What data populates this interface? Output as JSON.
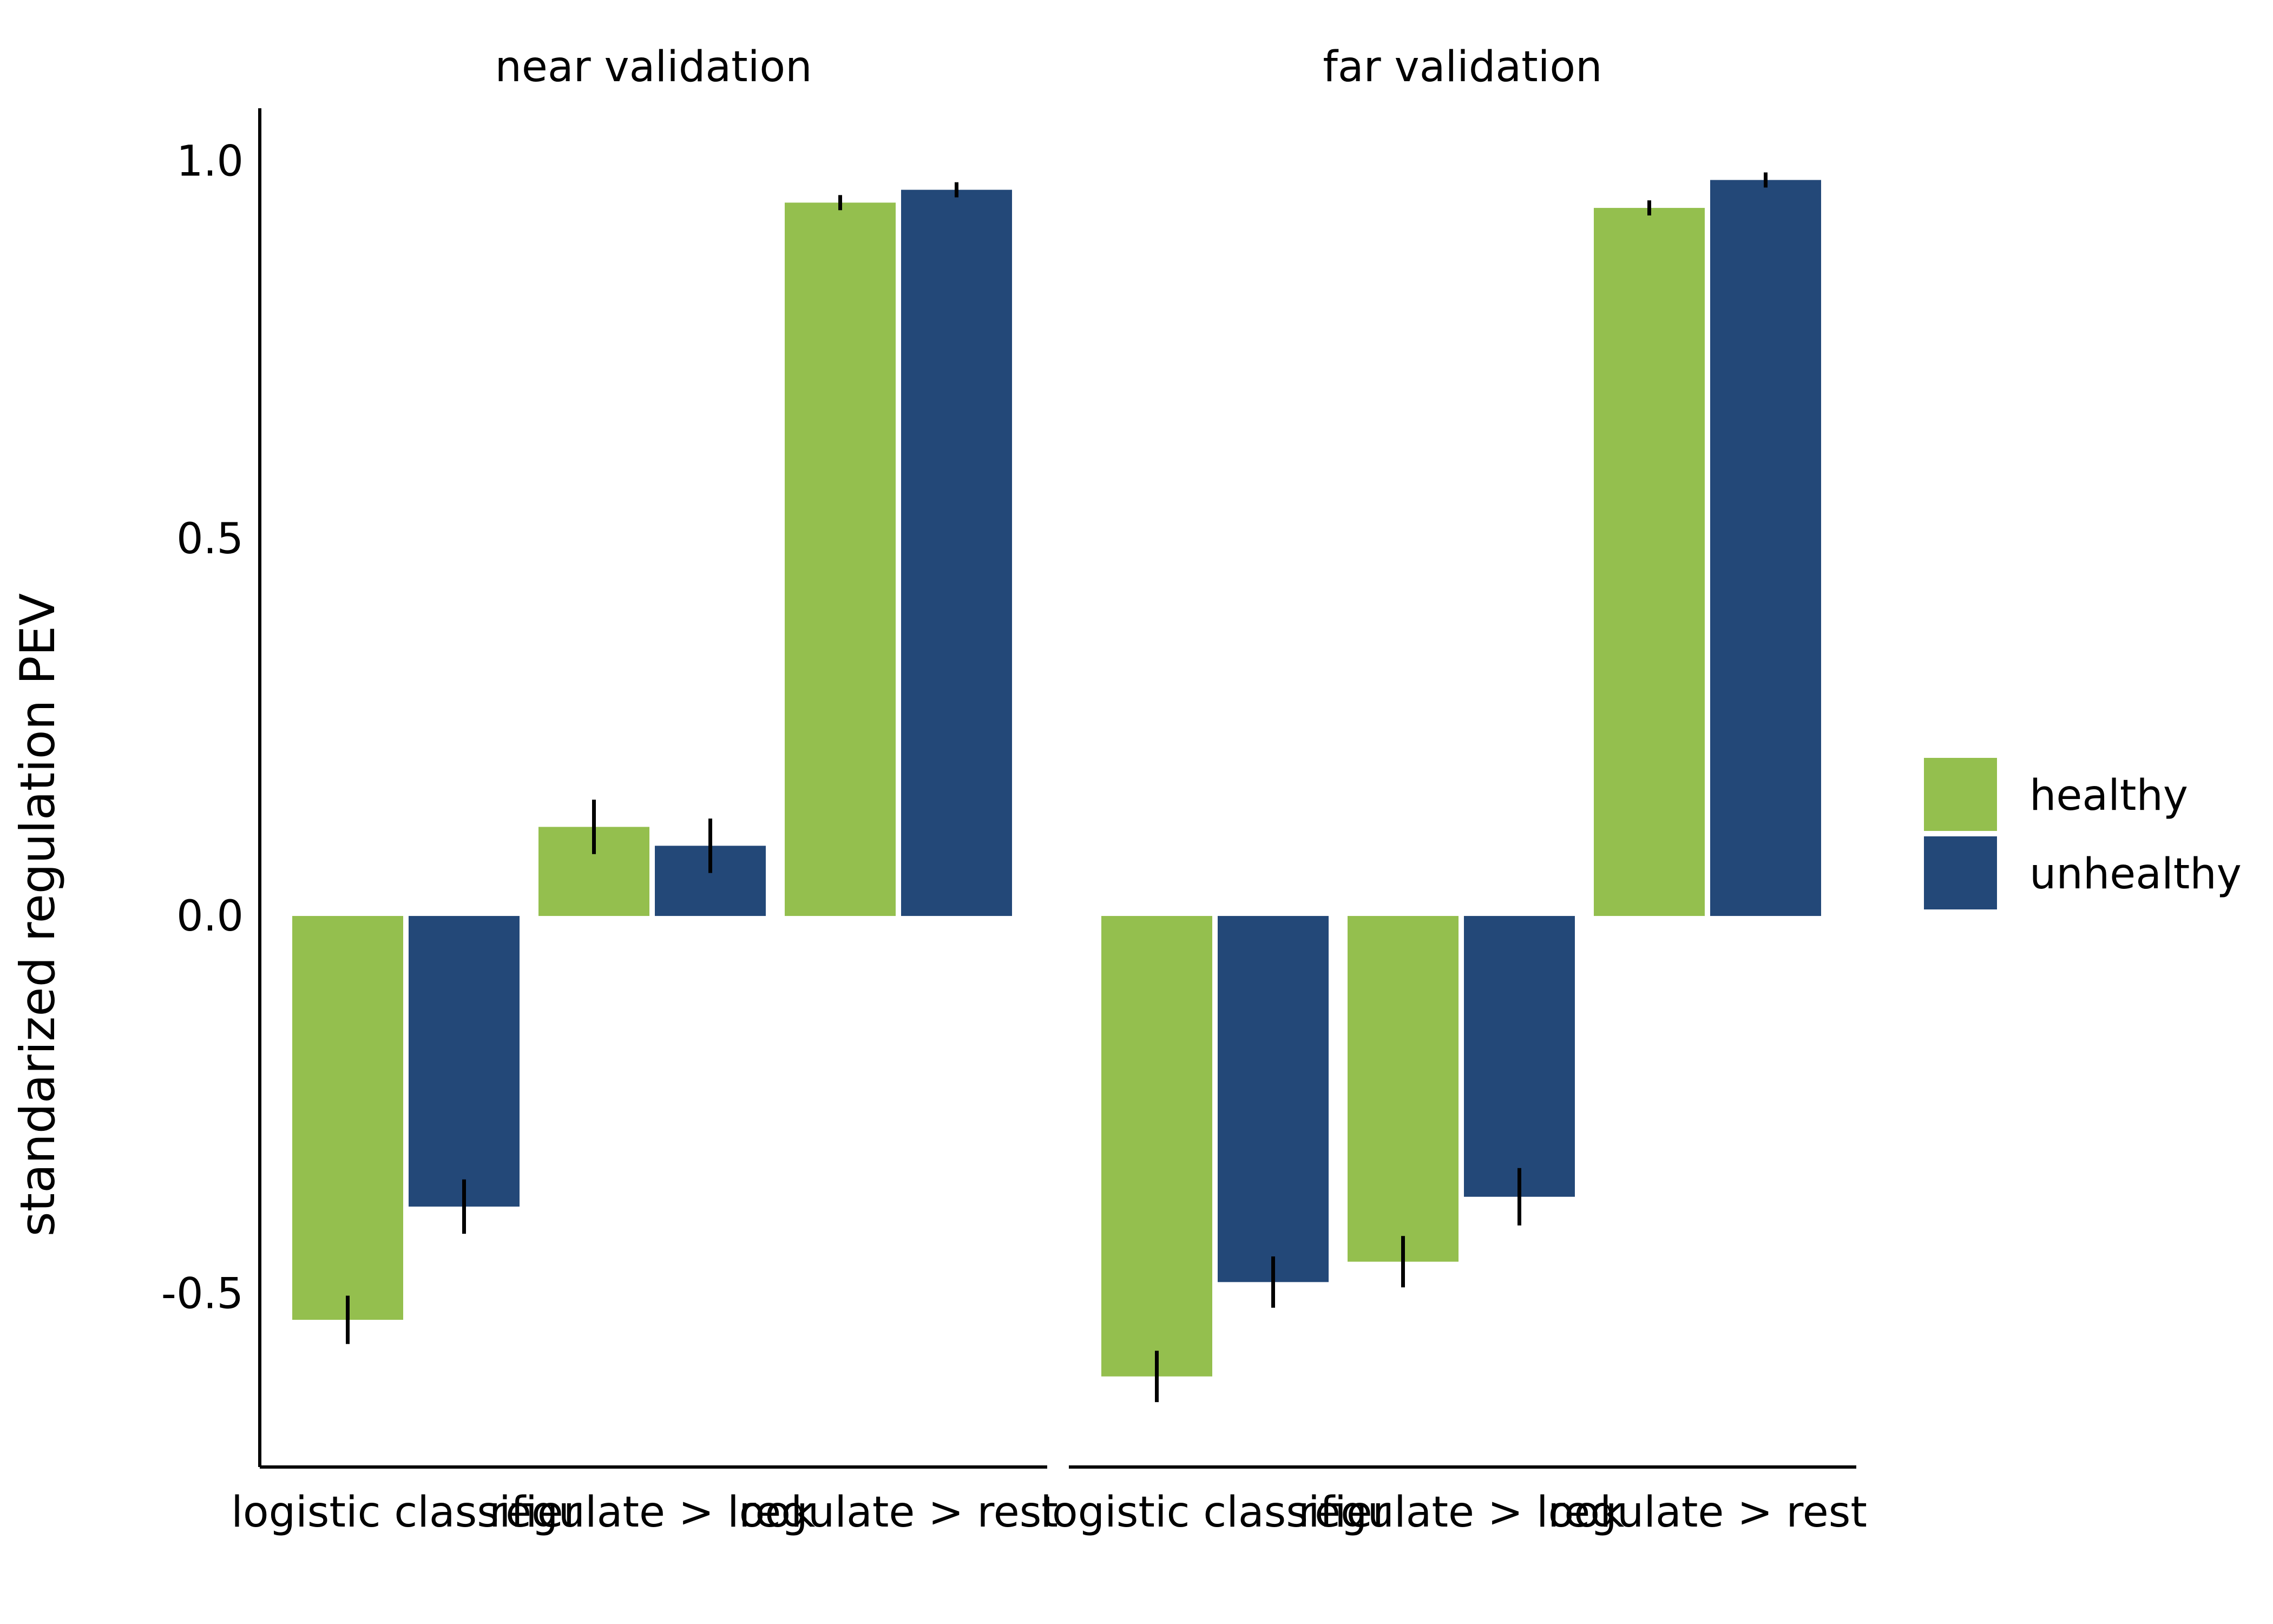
{
  "chart_data": {
    "type": "bar",
    "ylabel": "standarized regulation PEV",
    "ylim": [
      -0.73,
      1.07
    ],
    "yticks": [
      -0.5,
      0.0,
      0.5,
      1.0
    ],
    "ytick_labels": [
      "-0.5",
      "0.0",
      "0.5",
      "1.0"
    ],
    "legend": {
      "placement": "right",
      "entries": [
        "healthy",
        "unhealthy"
      ]
    },
    "colors": {
      "healthy": "#94bf4e",
      "unhealthy": "#234878",
      "error_bar": "#000000"
    },
    "categories": [
      "logistic classifier",
      "regulate > look",
      "regulate > rest"
    ],
    "facets": [
      {
        "title": "near validation",
        "series": [
          {
            "name": "healthy",
            "values": [
              -0.535,
              0.118,
              0.945
            ],
            "errors": [
              0.032,
              0.036,
              0.01
            ]
          },
          {
            "name": "unhealthy",
            "values": [
              -0.385,
              0.093,
              0.962
            ],
            "errors": [
              0.036,
              0.036,
              0.01
            ]
          }
        ]
      },
      {
        "title": "far validation",
        "series": [
          {
            "name": "healthy",
            "values": [
              -0.61,
              -0.458,
              0.938
            ],
            "errors": [
              0.034,
              0.034,
              0.01
            ]
          },
          {
            "name": "unhealthy",
            "values": [
              -0.485,
              -0.372,
              0.975
            ],
            "errors": [
              0.034,
              0.038,
              0.01
            ]
          }
        ]
      }
    ]
  }
}
